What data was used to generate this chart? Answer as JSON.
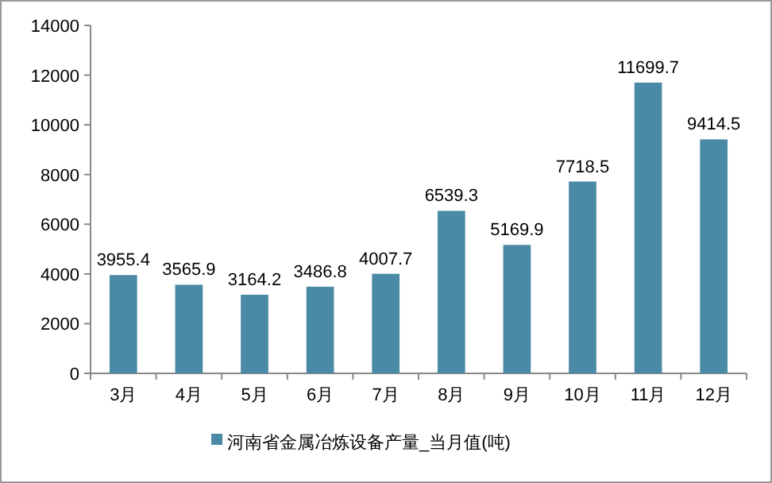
{
  "chart_data": {
    "type": "bar",
    "categories": [
      "3月",
      "4月",
      "5月",
      "6月",
      "7月",
      "8月",
      "9月",
      "10月",
      "11月",
      "12月"
    ],
    "series": [
      {
        "name": "河南省金属冶炼设备产量_当月值(吨)",
        "color": "#4a8aa6",
        "values": [
          3955.4,
          3565.9,
          3164.2,
          3486.8,
          4007.7,
          6539.3,
          5169.9,
          7718.5,
          11699.7,
          9414.5
        ]
      }
    ],
    "ylim": [
      0,
      14000
    ],
    "yticks": [
      0,
      2000,
      4000,
      6000,
      8000,
      10000,
      12000,
      14000
    ],
    "data_labels": true,
    "grid": false,
    "legend": "bottom"
  }
}
